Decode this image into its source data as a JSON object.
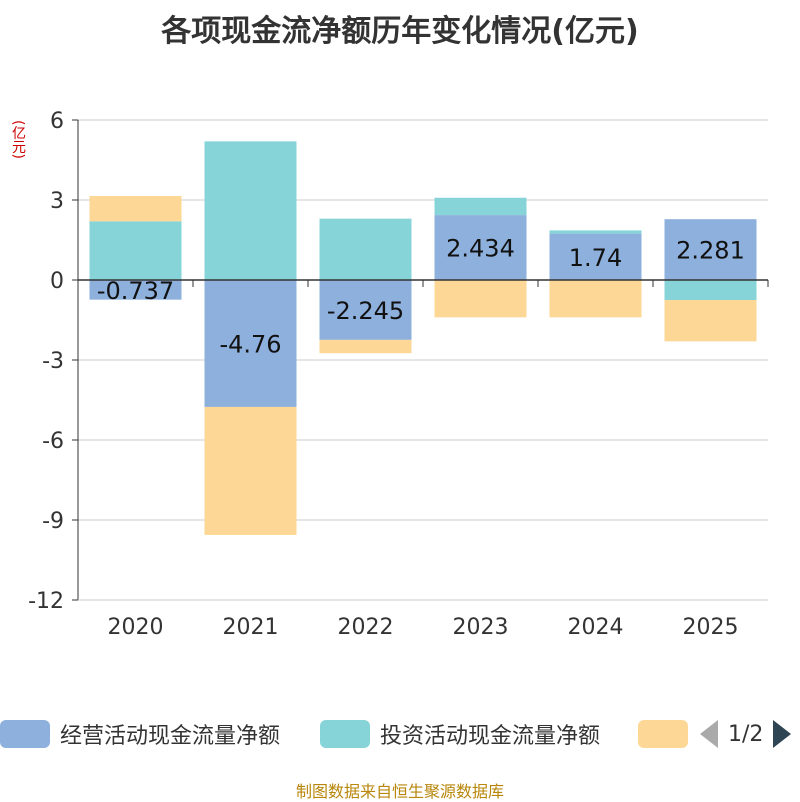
{
  "title": "各项现金流净额历年变化情况(亿元)",
  "source": "制图数据来自恒生聚源数据库",
  "pager": {
    "text": "1/2"
  },
  "colors": {
    "operating": "#8eb0dc",
    "investing": "#86d4d8",
    "financing": "#fdd796",
    "axis": "#333333",
    "grid": "#cccccc",
    "unit": "#cc0000"
  },
  "chart_data": {
    "type": "bar",
    "stacked": true,
    "title": "各项现金流净额历年变化情况(亿元)",
    "ylabel": "(亿元)",
    "ylim": [
      -12,
      6
    ],
    "yticks": [
      6,
      3,
      0,
      -3,
      -6,
      -9,
      -12
    ],
    "ytick_labels": [
      "6",
      "3",
      "0",
      "-3",
      "-6",
      "-9",
      "-12"
    ],
    "categories": [
      "2020",
      "2021",
      "2022",
      "2023",
      "2024",
      "2025"
    ],
    "series": [
      {
        "name": "经营活动现金流量净额",
        "values": [
          -0.737,
          -4.76,
          -2.245,
          2.434,
          1.74,
          2.281
        ],
        "labels": [
          "-0.737",
          "-4.76",
          "-2.245",
          "2.434",
          "1.74",
          "2.281"
        ]
      },
      {
        "name": "投资活动现金流量净额",
        "values": [
          2.2,
          5.2,
          2.3,
          0.65,
          0.12,
          -0.75
        ]
      },
      {
        "name": "",
        "values": [
          0.95,
          -4.8,
          -0.5,
          -1.4,
          -1.4,
          -1.55
        ]
      }
    ],
    "legend": [
      "经营活动现金流量净额",
      "投资活动现金流量净额",
      ""
    ]
  }
}
